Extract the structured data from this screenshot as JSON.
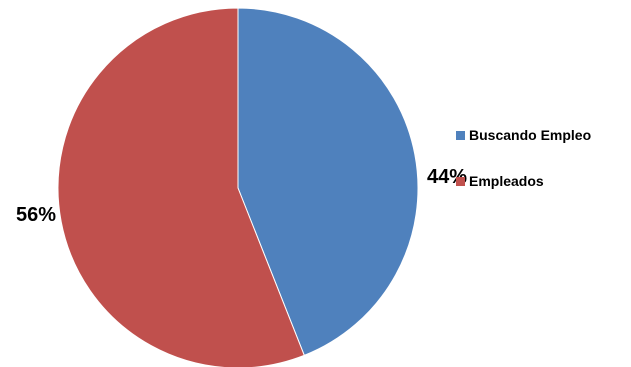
{
  "chart_data": {
    "type": "pie",
    "title": "",
    "slices": [
      {
        "label": "Buscando Empleo",
        "value": 44,
        "value_label": "44%",
        "color": "#4F81BD"
      },
      {
        "label": "Empleados",
        "value": 56,
        "value_label": "56%",
        "color": "#C0504D"
      }
    ],
    "start_angle_deg": 0,
    "direction": "clockwise",
    "legend_position": "right"
  }
}
